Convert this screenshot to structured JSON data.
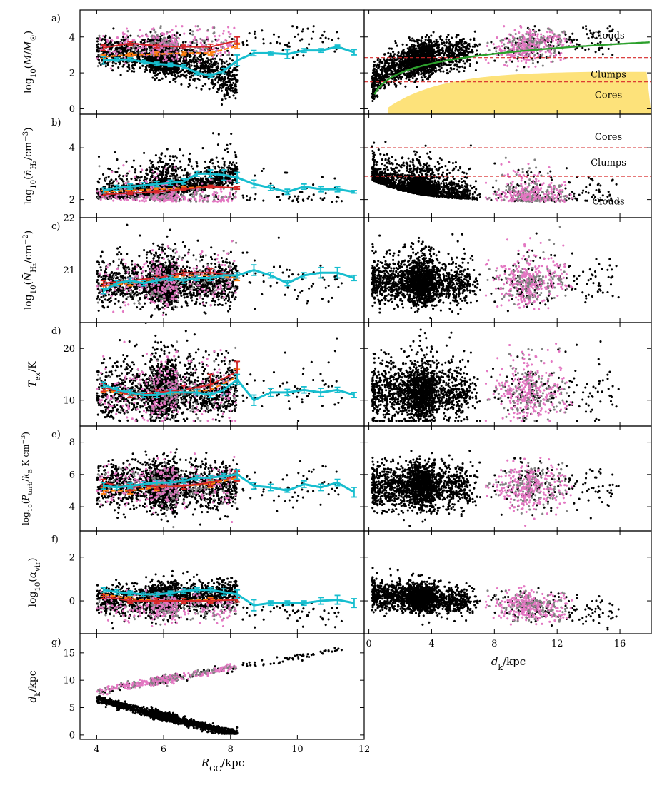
{
  "colors": {
    "black_points": "#000000",
    "grey_points": "#808080",
    "pink_points": "#e377c2",
    "cyan_line": "#17becf",
    "red_line": "#d62728",
    "orange_line": "#ff7f0e",
    "green_fit": "#2ca02c",
    "cores_fill": "#fde27a",
    "threshold_line": "#d62728"
  },
  "chart_data": {
    "type": "scatter",
    "shared_xlabel_left": "R_GC/kpc",
    "shared_xlabel_right": "d_k/kpc",
    "left_xlim": [
      3.5,
      12
    ],
    "left_xticks": [
      "4",
      "6",
      "8",
      "10",
      "12"
    ],
    "right_xlim": [
      -0.3,
      18
    ],
    "right_xticks": [
      "0",
      "4",
      "8",
      "12",
      "16"
    ],
    "panels": [
      {
        "id": "a",
        "label": "a)",
        "ylabel": "log10(M/M☉)",
        "ylim": [
          -0.3,
          5.5
        ],
        "yticks": [
          "0",
          "2",
          "4"
        ],
        "right_regions": [
          {
            "text": "Clouds",
            "y": 4.1
          },
          {
            "text": "Clumps",
            "y": 1.95
          },
          {
            "text": "Cores",
            "y": 0.8
          }
        ],
        "thresholds": [
          2.85,
          1.5
        ],
        "fit_curve": "log10 M rising with d_k from ~0 at 0.3 kpc to ~3.45 at 18 kpc",
        "cyan": {
          "x": [
            4.2,
            4.6,
            5.0,
            5.4,
            5.8,
            6.2,
            6.6,
            7.0,
            7.4,
            7.8,
            8.2,
            8.7,
            9.2,
            9.7,
            10.2,
            10.7,
            11.2,
            11.7
          ],
          "y": [
            2.7,
            2.75,
            2.75,
            2.6,
            2.5,
            2.45,
            2.35,
            2.0,
            1.85,
            2.1,
            2.7,
            3.1,
            3.1,
            3.05,
            3.25,
            3.25,
            3.45,
            3.15
          ],
          "err": [
            0.2,
            0.1,
            0.1,
            0.1,
            0.1,
            0.1,
            0.1,
            0.1,
            0.1,
            0.15,
            0.3,
            0.15,
            0.1,
            0.25,
            0.1,
            0.1,
            0.1,
            0.15
          ]
        },
        "red": {
          "x": [
            4.2,
            5.0,
            5.8,
            6.6,
            7.4,
            8.2
          ],
          "y": [
            3.4,
            3.65,
            3.5,
            3.45,
            3.45,
            3.8
          ],
          "err": [
            0.15,
            0.1,
            0.1,
            0.1,
            0.15,
            0.2
          ]
        },
        "orange": {
          "x": [
            4.2,
            5.0,
            5.8,
            6.6,
            7.4,
            8.2
          ],
          "y": [
            2.9,
            3.0,
            3.05,
            3.1,
            3.1,
            3.5
          ],
          "err": [
            0.1,
            0.1,
            0.1,
            0.1,
            0.1,
            0.15
          ]
        }
      },
      {
        "id": "b",
        "label": "b)",
        "ylabel": "log10(n̄H2/cm⁻³)",
        "ylim": [
          1.3,
          5.3
        ],
        "yticks": [
          "2",
          "4"
        ],
        "right_regions": [
          {
            "text": "Cores",
            "y": 4.45
          },
          {
            "text": "Clumps",
            "y": 3.45
          },
          {
            "text": "Clouds",
            "y": 1.95
          }
        ],
        "thresholds": [
          4.0,
          2.9
        ],
        "cyan": {
          "x": [
            4.2,
            4.6,
            5.0,
            5.4,
            5.8,
            6.2,
            6.6,
            7.0,
            7.4,
            7.8,
            8.2,
            8.7,
            9.2,
            9.7,
            10.2,
            10.7,
            11.2,
            11.7
          ],
          "y": [
            2.35,
            2.45,
            2.5,
            2.55,
            2.6,
            2.65,
            2.7,
            3.0,
            3.0,
            2.95,
            2.85,
            2.6,
            2.45,
            2.3,
            2.5,
            2.4,
            2.4,
            2.3
          ],
          "err": [
            0.1,
            0.1,
            0.1,
            0.1,
            0.1,
            0.1,
            0.1,
            0.1,
            0.15,
            0.2,
            0.2,
            0.15,
            0.1,
            0.1,
            0.1,
            0.1,
            0.1,
            0.05
          ]
        },
        "red": {
          "x": [
            4.2,
            5.0,
            5.8,
            6.6,
            7.4,
            8.2
          ],
          "y": [
            2.2,
            2.25,
            2.3,
            2.4,
            2.5,
            2.45
          ],
          "err": [
            0.05,
            0.05,
            0.05,
            0.05,
            0.05,
            0.05
          ]
        },
        "orange": {
          "x": [
            4.2,
            5.0,
            5.8,
            6.6,
            7.4,
            8.2
          ],
          "y": [
            2.3,
            2.35,
            2.4,
            2.45,
            2.5,
            2.45
          ],
          "err": [
            0.05,
            0.05,
            0.05,
            0.05,
            0.05,
            0.05
          ]
        }
      },
      {
        "id": "c",
        "label": "c)",
        "ylabel": "log10(N̄H2/cm⁻²)",
        "ylim": [
          20.0,
          22.0
        ],
        "yticks": [
          "21",
          "22"
        ],
        "cyan": {
          "x": [
            4.2,
            4.6,
            5.0,
            5.4,
            5.8,
            6.2,
            6.6,
            7.0,
            7.4,
            7.8,
            8.2,
            8.7,
            9.2,
            9.7,
            10.2,
            10.7,
            11.2,
            11.7
          ],
          "y": [
            20.6,
            20.75,
            20.8,
            20.75,
            20.8,
            20.85,
            20.8,
            20.85,
            20.85,
            20.9,
            20.9,
            21.0,
            20.9,
            20.75,
            20.9,
            20.95,
            20.95,
            20.85
          ],
          "err": [
            0.05,
            0.05,
            0.05,
            0.05,
            0.05,
            0.05,
            0.05,
            0.05,
            0.05,
            0.05,
            0.05,
            0.1,
            0.05,
            0.05,
            0.05,
            0.1,
            0.1,
            0.05
          ]
        },
        "red": {
          "x": [
            4.2,
            5.0,
            5.8,
            6.6,
            7.4,
            8.2
          ],
          "y": [
            20.75,
            20.8,
            20.85,
            20.95,
            20.95,
            20.9
          ],
          "err": [
            0.05,
            0.05,
            0.05,
            0.05,
            0.08,
            0.05
          ]
        },
        "orange": {
          "x": [
            4.2,
            5.0,
            5.8,
            6.6,
            7.4,
            8.2
          ],
          "y": [
            20.7,
            20.75,
            20.8,
            20.9,
            20.9,
            20.85
          ],
          "err": [
            0.05,
            0.05,
            0.05,
            0.05,
            0.05,
            0.05
          ]
        }
      },
      {
        "id": "d",
        "label": "d)",
        "ylabel": "T_ex/K",
        "ylim": [
          5,
          25
        ],
        "yticks": [
          "10",
          "20"
        ],
        "cyan": {
          "x": [
            4.2,
            4.6,
            5.0,
            5.4,
            5.8,
            6.2,
            6.6,
            7.0,
            7.4,
            7.8,
            8.2,
            8.7,
            9.2,
            9.7,
            10.2,
            10.7,
            11.2,
            11.7
          ],
          "y": [
            13.0,
            12.0,
            11.5,
            11.0,
            11.0,
            11.5,
            11.5,
            11.5,
            11.0,
            12.0,
            14.0,
            10.0,
            11.5,
            11.5,
            12.0,
            11.5,
            12.0,
            11.0
          ],
          "err": [
            0.5,
            0.5,
            0.5,
            0.5,
            0.5,
            0.5,
            0.5,
            0.5,
            0.5,
            1.0,
            1.0,
            1.0,
            0.8,
            0.6,
            0.6,
            0.8,
            0.5,
            0.5
          ]
        },
        "red": {
          "x": [
            4.2,
            5.0,
            5.8,
            6.6,
            7.4,
            8.2
          ],
          "y": [
            12.5,
            11.0,
            11.5,
            12.0,
            13.0,
            15.5
          ],
          "err": [
            0.8,
            0.5,
            0.5,
            0.8,
            2.0,
            2.0
          ]
        },
        "orange": {
          "x": [
            4.2,
            5.0,
            5.8,
            6.6,
            7.4,
            8.2
          ],
          "y": [
            12.0,
            11.0,
            11.0,
            11.5,
            12.0,
            14.5
          ],
          "err": [
            0.5,
            0.5,
            0.5,
            0.5,
            1.0,
            1.5
          ]
        }
      },
      {
        "id": "e",
        "label": "e)",
        "ylabel": "log10(P_turb / k_B K cm⁻³)",
        "ylim": [
          2.5,
          9
        ],
        "yticks": [
          "4",
          "6",
          "8"
        ],
        "cyan": {
          "x": [
            4.2,
            4.6,
            5.0,
            5.4,
            5.8,
            6.2,
            6.6,
            7.0,
            7.4,
            7.8,
            8.2,
            8.7,
            9.2,
            9.7,
            10.2,
            10.7,
            11.2,
            11.7
          ],
          "y": [
            5.3,
            5.2,
            5.3,
            5.4,
            5.5,
            5.5,
            5.6,
            5.8,
            5.8,
            5.9,
            6.0,
            5.3,
            5.2,
            5.0,
            5.4,
            5.2,
            5.5,
            4.9
          ],
          "err": [
            0.2,
            0.15,
            0.15,
            0.15,
            0.15,
            0.15,
            0.15,
            0.15,
            0.15,
            0.15,
            0.3,
            0.2,
            0.2,
            0.1,
            0.2,
            0.2,
            0.2,
            0.3
          ]
        },
        "red": {
          "x": [
            4.2,
            5.0,
            5.8,
            6.6,
            7.4,
            8.2
          ],
          "y": [
            5.5,
            5.2,
            5.3,
            5.3,
            5.5,
            5.9
          ],
          "err": [
            0.2,
            0.2,
            0.2,
            0.2,
            0.2,
            0.3
          ]
        },
        "orange": {
          "x": [
            4.2,
            5.0,
            5.8,
            6.6,
            7.4,
            8.2
          ],
          "y": [
            5.0,
            5.0,
            5.2,
            5.3,
            5.4,
            5.8
          ],
          "err": [
            0.2,
            0.2,
            0.2,
            0.2,
            0.2,
            0.2
          ]
        }
      },
      {
        "id": "f",
        "label": "f)",
        "ylabel": "log10(α_vir)",
        "ylim": [
          -1.5,
          3.2
        ],
        "yticks": [
          "0",
          "2"
        ],
        "cyan": {
          "x": [
            4.2,
            4.6,
            5.0,
            5.4,
            5.8,
            6.2,
            6.6,
            7.0,
            7.4,
            7.8,
            8.2,
            8.7,
            9.2,
            9.7,
            10.2,
            10.7,
            11.2,
            11.7
          ],
          "y": [
            0.5,
            0.4,
            0.35,
            0.3,
            0.3,
            0.35,
            0.45,
            0.5,
            0.5,
            0.4,
            0.3,
            -0.2,
            -0.1,
            -0.1,
            -0.1,
            0.0,
            0.05,
            -0.1
          ],
          "err": [
            0.1,
            0.1,
            0.1,
            0.1,
            0.1,
            0.1,
            0.1,
            0.1,
            0.1,
            0.15,
            0.2,
            0.25,
            0.1,
            0.1,
            0.1,
            0.15,
            0.2,
            0.2
          ]
        },
        "red": {
          "x": [
            4.2,
            5.0,
            5.8,
            6.6,
            7.4,
            8.2
          ],
          "y": [
            0.2,
            0.0,
            0.0,
            0.0,
            0.0,
            0.05
          ],
          "err": [
            0.1,
            0.1,
            0.1,
            0.1,
            0.1,
            0.1
          ]
        },
        "orange": {
          "x": [
            4.2,
            5.0,
            5.8,
            6.6,
            7.4,
            8.2
          ],
          "y": [
            0.3,
            0.1,
            0.0,
            0.0,
            0.05,
            0.05
          ],
          "err": [
            0.1,
            0.1,
            0.1,
            0.1,
            0.1,
            0.1
          ]
        }
      },
      {
        "id": "g",
        "label": "g)",
        "ylabel": "d_k/kpc",
        "ylim": [
          -0.8,
          18.5
        ],
        "yticks": [
          "0",
          "5",
          "10",
          "15"
        ],
        "near_branch": "d_k falls from ~6.5 kpc at R_GC 4 to ~0 at R_GC 8.2",
        "far_branch": "d_k rises from ~8 kpc at R_GC 4 to ~16 kpc at R_GC 11.7"
      }
    ]
  }
}
